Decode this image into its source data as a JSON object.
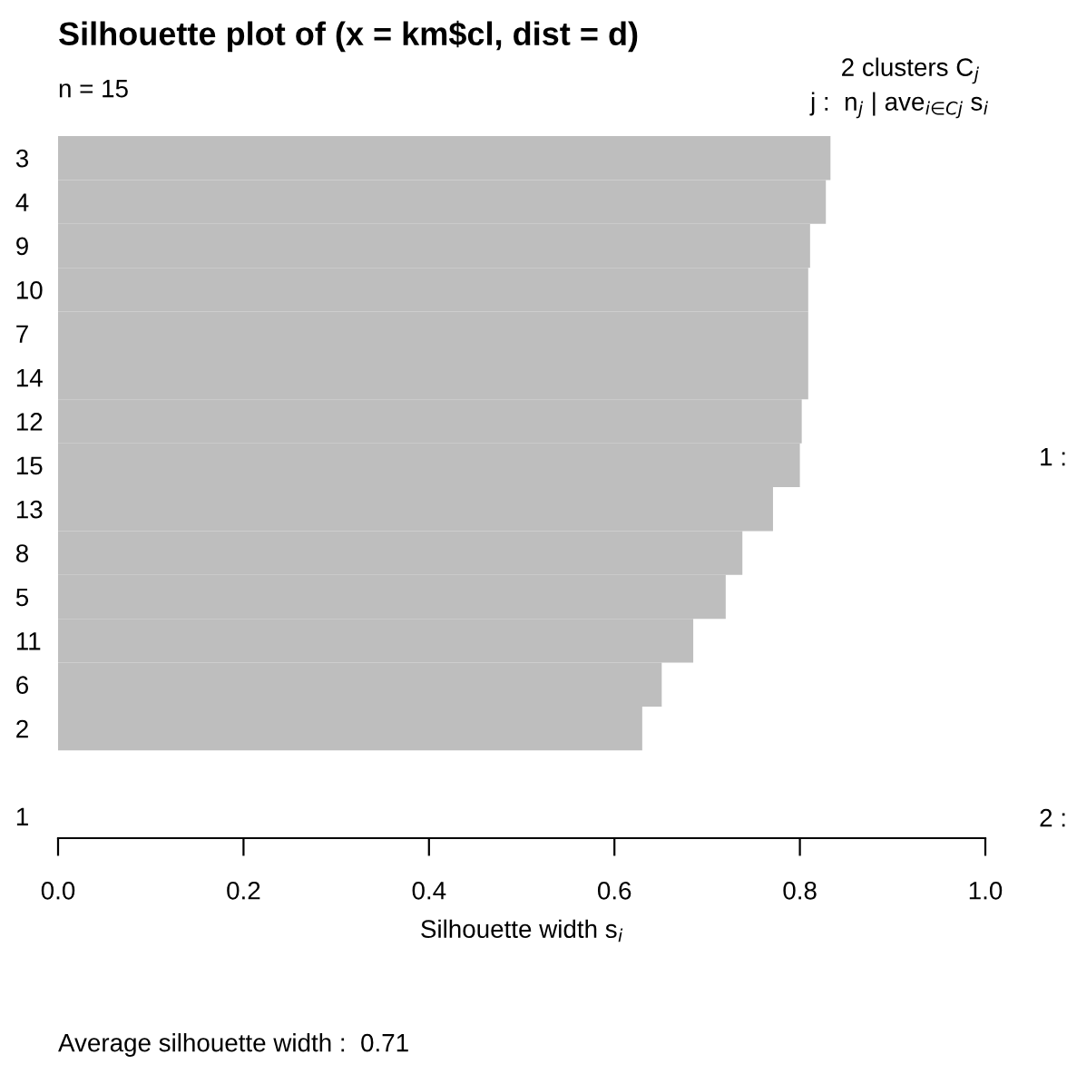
{
  "chart_data": {
    "type": "bar",
    "orientation": "horizontal",
    "title": "Silhouette plot of (x = km$cl, dist = d)",
    "xlabel": "Silhouette width s$_{i}$",
    "categories": [
      "3",
      "4",
      "9",
      "10",
      "7",
      "14",
      "12",
      "15",
      "13",
      "8",
      "5",
      "11",
      "6",
      "2",
      null,
      "1"
    ],
    "values": [
      0.833,
      0.828,
      0.811,
      0.809,
      0.809,
      0.809,
      0.802,
      0.8,
      0.771,
      0.738,
      0.72,
      0.685,
      0.651,
      0.63,
      null,
      0.0
    ],
    "color": "#bebebe",
    "xlim": [
      0,
      1
    ],
    "xticks": [
      {
        "value": 0,
        "label": "0.0"
      },
      0.2,
      0.4,
      0.6,
      0.8,
      {
        "value": 1,
        "label": "1.0"
      }
    ],
    "grid": false,
    "legend": false,
    "annotations": [
      "n = 15",
      "2 clusters C$_{j}$",
      "j :  n$_{j}$ | ave$_{i∈Cj}$ s$_{i}$",
      "1 :",
      "2 :",
      "Average silhouette width :  0.71"
    ]
  }
}
